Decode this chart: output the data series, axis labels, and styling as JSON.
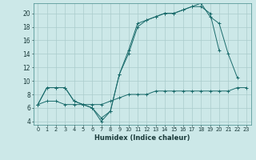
{
  "xlabel": "Humidex (Indice chaleur)",
  "ylabel": "",
  "bg_color": "#cce8e8",
  "line_color": "#1a6b6b",
  "grid_color": "#aacccc",
  "xlim": [
    -0.5,
    23.5
  ],
  "ylim": [
    3.5,
    21.5
  ],
  "xticks": [
    0,
    1,
    2,
    3,
    4,
    5,
    6,
    7,
    8,
    9,
    10,
    11,
    12,
    13,
    14,
    15,
    16,
    17,
    18,
    19,
    20,
    21,
    22,
    23
  ],
  "yticks": [
    4,
    6,
    8,
    10,
    12,
    14,
    16,
    18,
    20
  ],
  "line1_x": [
    0,
    1,
    2,
    3,
    4,
    5,
    6,
    7,
    8,
    9,
    10,
    11,
    12,
    13,
    14,
    15,
    16,
    17,
    18,
    19,
    20
  ],
  "line1_y": [
    6.5,
    9,
    9,
    9,
    7,
    6.5,
    6,
    4,
    5.5,
    11,
    14.5,
    18.5,
    19,
    19.5,
    20,
    20,
    20.5,
    21,
    21,
    20,
    14.5
  ],
  "line2_x": [
    0,
    1,
    2,
    3,
    4,
    5,
    6,
    7,
    8,
    9,
    10,
    11,
    12,
    13,
    14,
    15,
    16,
    17,
    18,
    19,
    20,
    21,
    22
  ],
  "line2_y": [
    6.5,
    9,
    9,
    9,
    7,
    6.5,
    6,
    4.5,
    5.5,
    11,
    14,
    18,
    19,
    19.5,
    20,
    20,
    20.5,
    21,
    21.5,
    19.5,
    18.5,
    14,
    10.5
  ],
  "line3_x": [
    0,
    1,
    2,
    3,
    4,
    5,
    6,
    7,
    8,
    9,
    10,
    11,
    12,
    13,
    14,
    15,
    16,
    17,
    18,
    19,
    20,
    21,
    22,
    23
  ],
  "line3_y": [
    6.5,
    7,
    7,
    6.5,
    6.5,
    6.5,
    6.5,
    6.5,
    7,
    7.5,
    8,
    8,
    8,
    8.5,
    8.5,
    8.5,
    8.5,
    8.5,
    8.5,
    8.5,
    8.5,
    8.5,
    9,
    9
  ]
}
